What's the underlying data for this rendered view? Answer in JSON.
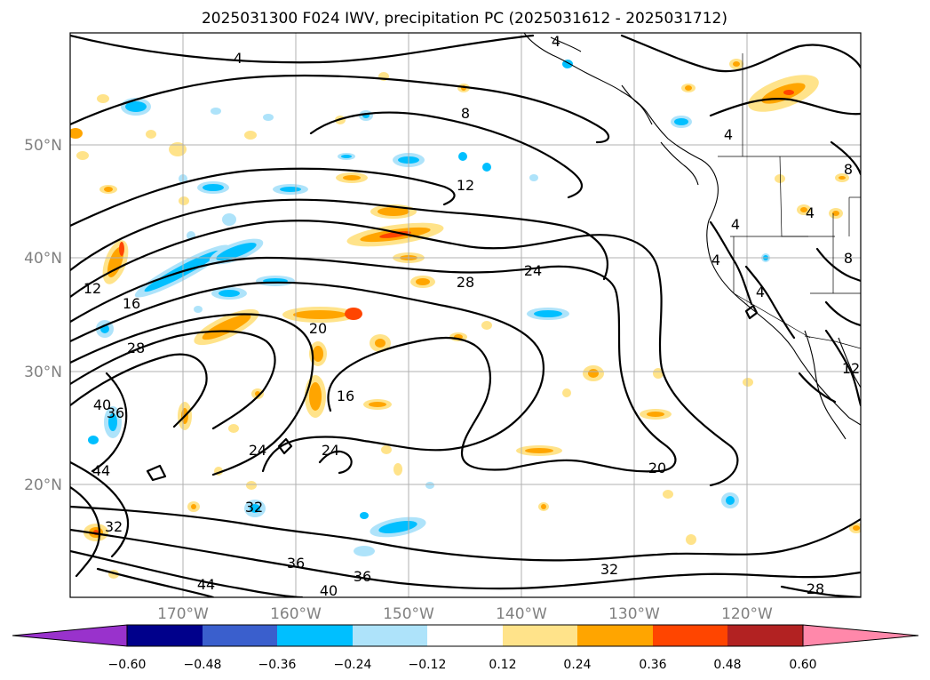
{
  "title": "2025031300 F024 IWV, precipitation PC (2025031612 - 2025031712)",
  "lat_ticks": [
    "50°N",
    "40°N",
    "30°N",
    "20°N"
  ],
  "lon_ticks": [
    "170°W",
    "160°W",
    "150°W",
    "140°W",
    "130°W",
    "120°W"
  ],
  "colorbar": {
    "ticks": [
      "−0.60",
      "−0.48",
      "−0.36",
      "−0.24",
      "−0.12",
      "0.12",
      "0.24",
      "0.36",
      "0.48",
      "0.60"
    ],
    "colors": [
      "#9932cc",
      "#00008b",
      "#3a5fcd",
      "#00bfff",
      "#aee3fa",
      "#ffffff",
      "#ffe38a",
      "#ffa500",
      "#ff4500",
      "#b22222",
      "#ff88aa"
    ]
  },
  "contour_labels": [
    "4",
    "8",
    "12",
    "16",
    "20",
    "24",
    "28",
    "32",
    "36",
    "40",
    "44"
  ],
  "colors": {
    "positive_light": "#ffe38a",
    "positive_mid": "#ffa500",
    "positive_strong": "#ff4500",
    "negative_light": "#aee3fa",
    "negative_mid": "#00bfff"
  }
}
